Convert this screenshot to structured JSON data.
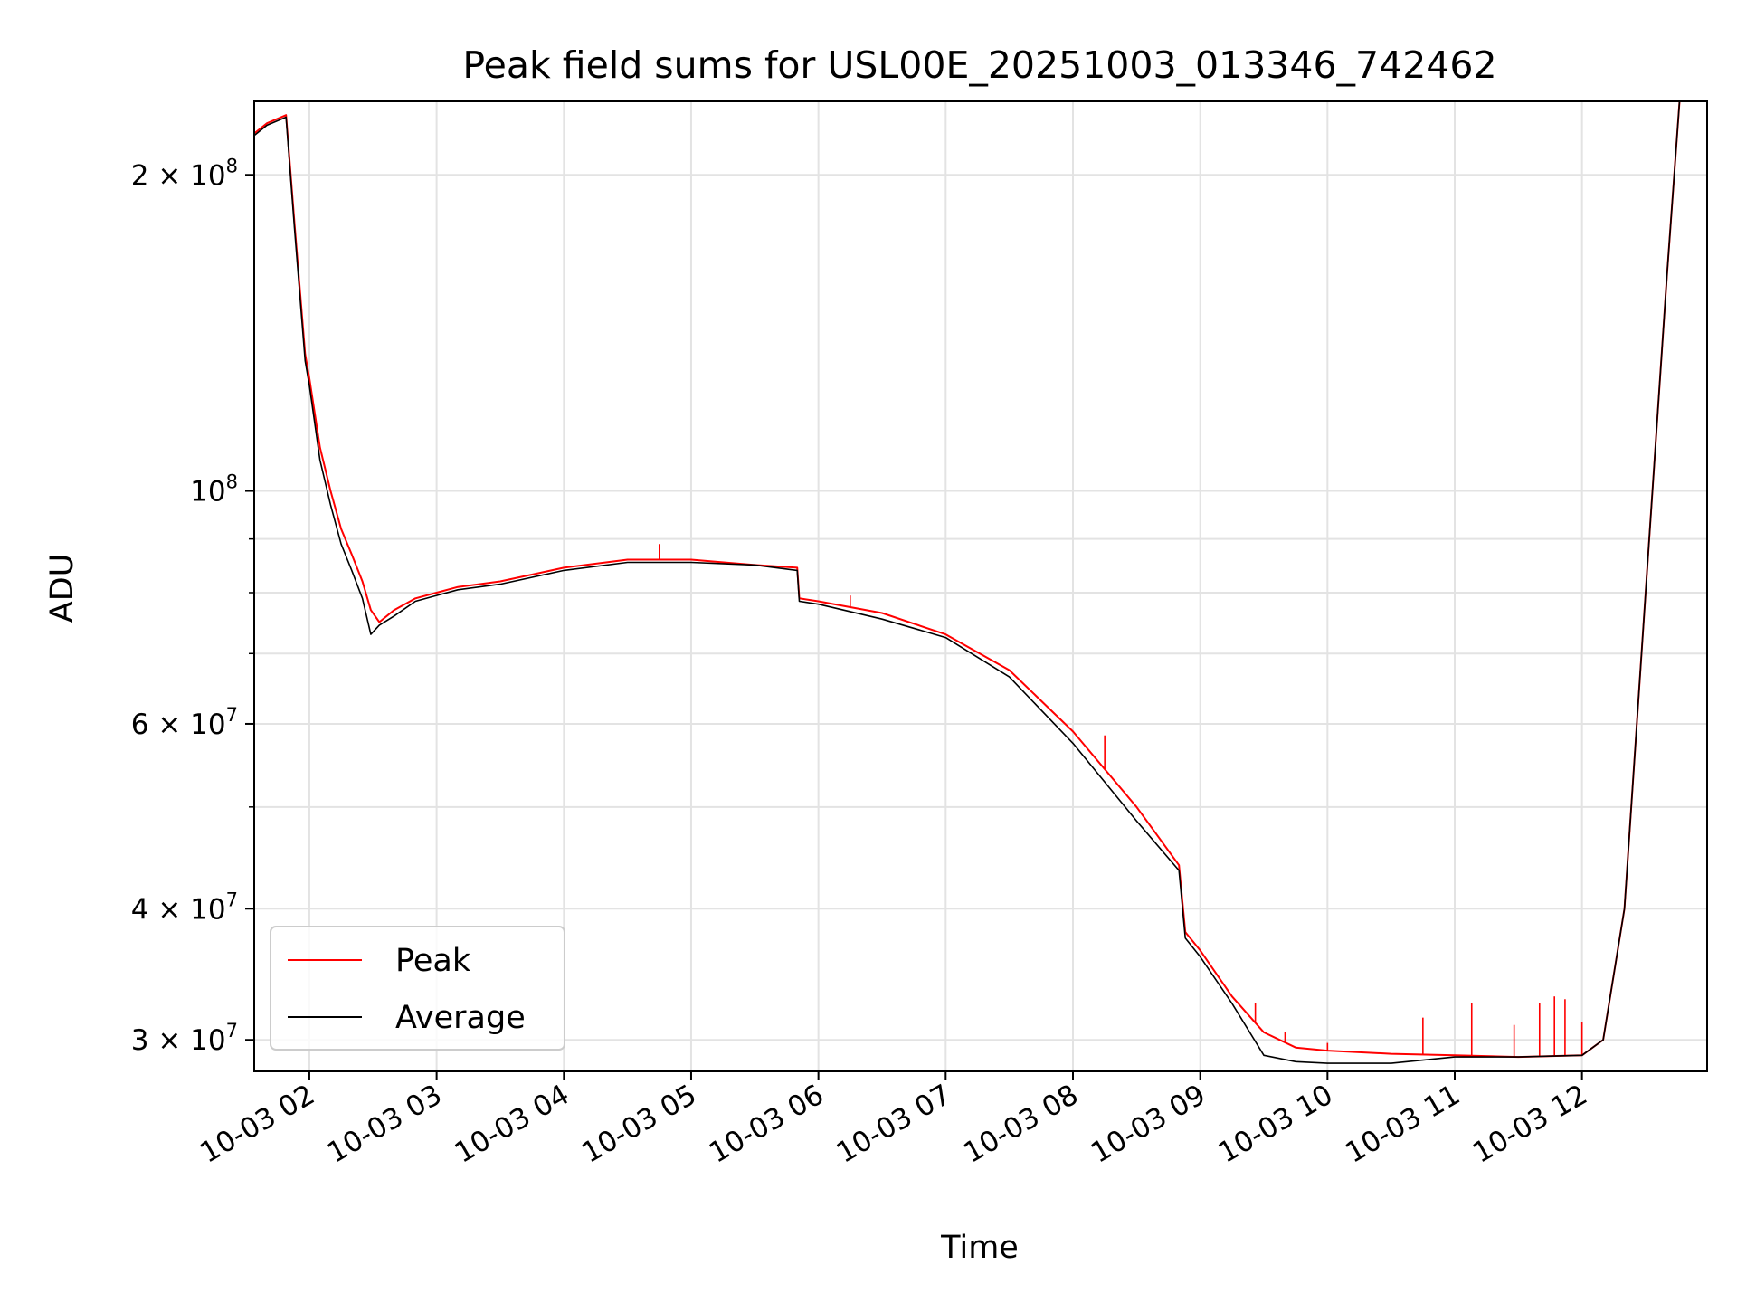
{
  "chart_data": {
    "type": "line",
    "title": "Peak field sums for USL00E_20251003_013346_742462",
    "xlabel": "Time",
    "ylabel": "ADU",
    "y_scale": "log",
    "x_domain": [
      "2025-10-03 01:34",
      "2025-10-03 12:59"
    ],
    "ylim": [
      28000000,
      235000000
    ],
    "grid": true,
    "legend_position": "lower-left",
    "x_ticks": [
      {
        "value": "2025-10-03 02:00",
        "label": "10-03 02"
      },
      {
        "value": "2025-10-03 03:00",
        "label": "10-03 03"
      },
      {
        "value": "2025-10-03 04:00",
        "label": "10-03 04"
      },
      {
        "value": "2025-10-03 05:00",
        "label": "10-03 05"
      },
      {
        "value": "2025-10-03 06:00",
        "label": "10-03 06"
      },
      {
        "value": "2025-10-03 07:00",
        "label": "10-03 07"
      },
      {
        "value": "2025-10-03 08:00",
        "label": "10-03 08"
      },
      {
        "value": "2025-10-03 09:00",
        "label": "10-03 09"
      },
      {
        "value": "2025-10-03 10:00",
        "label": "10-03 10"
      },
      {
        "value": "2025-10-03 11:00",
        "label": "10-03 11"
      },
      {
        "value": "2025-10-03 12:00",
        "label": "10-03 12"
      }
    ],
    "y_ticks": [
      {
        "value": 30000000,
        "coef": "3",
        "exp": "7"
      },
      {
        "value": 40000000,
        "coef": "4",
        "exp": "7"
      },
      {
        "value": 60000000,
        "coef": "6",
        "exp": "7"
      },
      {
        "value": 100000000,
        "coef": "",
        "exp": "8"
      },
      {
        "value": 200000000,
        "coef": "2",
        "exp": "8"
      }
    ],
    "y_minor_ticks": [
      50000000,
      70000000,
      80000000,
      90000000
    ],
    "series": [
      {
        "name": "Peak",
        "color": "#ff0000",
        "x": [
          "2025-10-03 01:34",
          "2025-10-03 01:40",
          "2025-10-03 01:49",
          "2025-10-03 01:53",
          "2025-10-03 01:58",
          "2025-10-03 02:00",
          "2025-10-03 02:05",
          "2025-10-03 02:10",
          "2025-10-03 02:15",
          "2025-10-03 02:20",
          "2025-10-03 02:25",
          "2025-10-03 02:29",
          "2025-10-03 02:33",
          "2025-10-03 02:40",
          "2025-10-03 02:50",
          "2025-10-03 03:00",
          "2025-10-03 03:10",
          "2025-10-03 03:30",
          "2025-10-03 04:00",
          "2025-10-03 04:30",
          "2025-10-03 05:00",
          "2025-10-03 05:30",
          "2025-10-03 05:50",
          "2025-10-03 05:51",
          "2025-10-03 06:00",
          "2025-10-03 06:30",
          "2025-10-03 07:00",
          "2025-10-03 07:30",
          "2025-10-03 08:00",
          "2025-10-03 08:30",
          "2025-10-03 08:50",
          "2025-10-03 08:53",
          "2025-10-03 09:00",
          "2025-10-03 09:15",
          "2025-10-03 09:30",
          "2025-10-03 09:45",
          "2025-10-03 10:00",
          "2025-10-03 10:30",
          "2025-10-03 11:00",
          "2025-10-03 11:30",
          "2025-10-03 12:00",
          "2025-10-03 12:10",
          "2025-10-03 12:20",
          "2025-10-03 12:30",
          "2025-10-03 12:40",
          "2025-10-03 12:46",
          "2025-10-03 12:59"
        ],
        "values": [
          219000000,
          224000000,
          228000000,
          180000000,
          135000000,
          128000000,
          110000000,
          100000000,
          92000000,
          87000000,
          82000000,
          77000000,
          75000000,
          77000000,
          79000000,
          80000000,
          81000000,
          82000000,
          84500000,
          86000000,
          86000000,
          85000000,
          84500000,
          79000000,
          78500000,
          76500000,
          73000000,
          67500000,
          59000000,
          50000000,
          44000000,
          38000000,
          36500000,
          33000000,
          30500000,
          29500000,
          29300000,
          29100000,
          29000000,
          28900000,
          29000000,
          30000000,
          40000000,
          80000000,
          160000000,
          235000000,
          235000000
        ],
        "spikes": [
          {
            "x": "2025-10-03 04:45",
            "y": 89000000
          },
          {
            "x": "2025-10-03 06:15",
            "y": 79500000
          },
          {
            "x": "2025-10-03 07:42",
            "y": 64000000
          },
          {
            "x": "2025-10-03 08:15",
            "y": 58500000
          },
          {
            "x": "2025-10-03 09:26",
            "y": 32500000
          },
          {
            "x": "2025-10-03 09:40",
            "y": 30500000
          },
          {
            "x": "2025-10-03 10:00",
            "y": 29800000
          },
          {
            "x": "2025-10-03 10:45",
            "y": 31500000
          },
          {
            "x": "2025-10-03 11:08",
            "y": 32500000
          },
          {
            "x": "2025-10-03 11:28",
            "y": 31000000
          },
          {
            "x": "2025-10-03 11:40",
            "y": 32500000
          },
          {
            "x": "2025-10-03 11:47",
            "y": 33000000
          },
          {
            "x": "2025-10-03 11:52",
            "y": 32800000
          },
          {
            "x": "2025-10-03 12:00",
            "y": 31200000
          }
        ]
      },
      {
        "name": "Average",
        "color": "#000000",
        "x": [
          "2025-10-03 01:34",
          "2025-10-03 01:40",
          "2025-10-03 01:49",
          "2025-10-03 01:53",
          "2025-10-03 01:58",
          "2025-10-03 02:00",
          "2025-10-03 02:05",
          "2025-10-03 02:10",
          "2025-10-03 02:15",
          "2025-10-03 02:20",
          "2025-10-03 02:25",
          "2025-10-03 02:29",
          "2025-10-03 02:33",
          "2025-10-03 02:40",
          "2025-10-03 02:50",
          "2025-10-03 03:00",
          "2025-10-03 03:10",
          "2025-10-03 03:30",
          "2025-10-03 04:00",
          "2025-10-03 04:30",
          "2025-10-03 05:00",
          "2025-10-03 05:30",
          "2025-10-03 05:50",
          "2025-10-03 05:51",
          "2025-10-03 06:00",
          "2025-10-03 06:30",
          "2025-10-03 07:00",
          "2025-10-03 07:30",
          "2025-10-03 08:00",
          "2025-10-03 08:30",
          "2025-10-03 08:50",
          "2025-10-03 08:53",
          "2025-10-03 09:00",
          "2025-10-03 09:15",
          "2025-10-03 09:30",
          "2025-10-03 09:45",
          "2025-10-03 10:00",
          "2025-10-03 10:30",
          "2025-10-03 11:00",
          "2025-10-03 11:30",
          "2025-10-03 12:00",
          "2025-10-03 12:10",
          "2025-10-03 12:20",
          "2025-10-03 12:30",
          "2025-10-03 12:40",
          "2025-10-03 12:46",
          "2025-10-03 12:59"
        ],
        "values": [
          218000000,
          223000000,
          227000000,
          178000000,
          133000000,
          126000000,
          107000000,
          97000000,
          89000000,
          84000000,
          79000000,
          73000000,
          74500000,
          76000000,
          78500000,
          79500000,
          80500000,
          81500000,
          84000000,
          85500000,
          85500000,
          85000000,
          84000000,
          78500000,
          78000000,
          75500000,
          72500000,
          66500000,
          57500000,
          48500000,
          43500000,
          37500000,
          36000000,
          32500000,
          29000000,
          28600000,
          28500000,
          28500000,
          28900000,
          28900000,
          29000000,
          30000000,
          40000000,
          80000000,
          160000000,
          235000000,
          235000000
        ]
      }
    ]
  }
}
